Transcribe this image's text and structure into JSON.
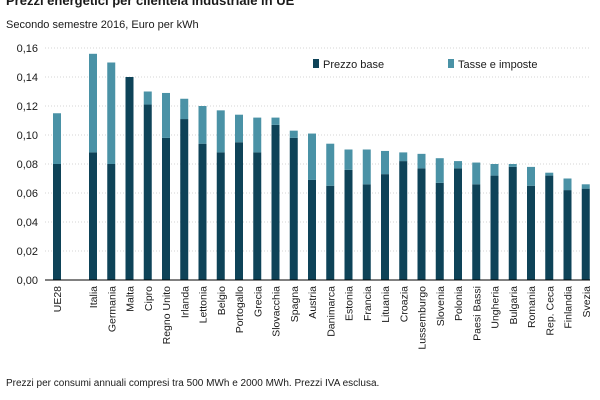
{
  "title": "Prezzi energetici per clientela industriale in UE",
  "subtitle": "Secondo semestre 2016, Euro per kWh",
  "footnote": "Prezzi per consumi annuali compresi tra 500 MWh e 2000 MWh.  Prezzi IVA esclusa.",
  "colors": {
    "base": "#0e4358",
    "taxes": "#4a92a6",
    "axis": "#000000"
  },
  "chart_data": {
    "type": "bar",
    "stacked": true,
    "ylim": [
      0,
      0.16
    ],
    "yticks": [
      "0,00",
      "0,02",
      "0,04",
      "0,06",
      "0,08",
      "0,10",
      "0,12",
      "0,14",
      "0,16"
    ],
    "legend_position": "top-right",
    "categories": [
      "UE28",
      "Italia",
      "Germania",
      "Malta",
      "Cipro",
      "Regno Unito",
      "Irlanda",
      "Lettonia",
      "Belgio",
      "Portogallo",
      "Grecia",
      "Slovacchia",
      "Spagna",
      "Austria",
      "Danimarca",
      "Estonia",
      "Francia",
      "Lituania",
      "Croazia",
      "Lussemburgo",
      "Slovenia",
      "Polonia",
      "Paesi Bassi",
      "Ungheria",
      "Bulgaria",
      "Romania",
      "Rep. Ceca",
      "Finlandia",
      "Svezia"
    ],
    "series": [
      {
        "name": "Prezzo base",
        "values": [
          0.08,
          0.088,
          0.08,
          0.14,
          0.121,
          0.098,
          0.111,
          0.094,
          0.088,
          0.095,
          0.088,
          0.107,
          0.098,
          0.069,
          0.065,
          0.076,
          0.066,
          0.073,
          0.082,
          0.077,
          0.067,
          0.077,
          0.066,
          0.072,
          0.078,
          0.065,
          0.072,
          0.062,
          0.063
        ]
      },
      {
        "name": "Tasse e imposte",
        "values": [
          0.035,
          0.068,
          0.07,
          0.0,
          0.009,
          0.031,
          0.014,
          0.026,
          0.029,
          0.019,
          0.024,
          0.005,
          0.005,
          0.032,
          0.029,
          0.014,
          0.024,
          0.016,
          0.006,
          0.01,
          0.017,
          0.005,
          0.015,
          0.008,
          0.002,
          0.013,
          0.002,
          0.008,
          0.003
        ]
      }
    ]
  }
}
